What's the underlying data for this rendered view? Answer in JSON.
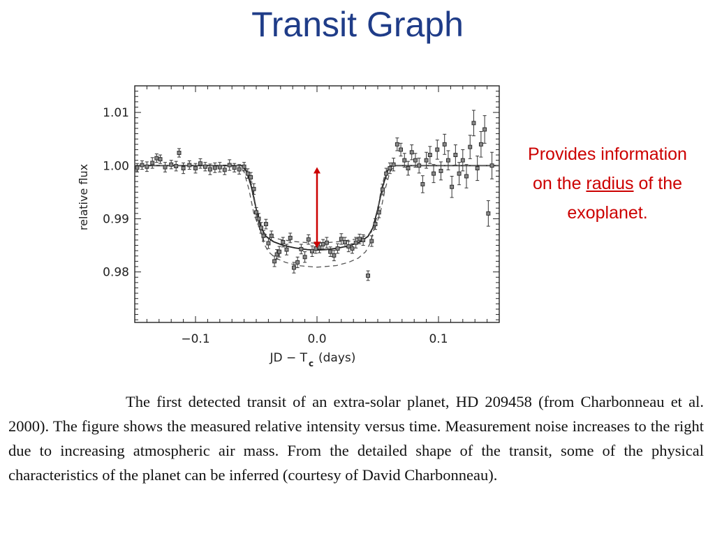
{
  "slide": {
    "title": "Transit Graph",
    "note": {
      "before": "Provides information on the ",
      "emphasis": "radius",
      "after": " of the exoplanet."
    },
    "caption": "The first detected transit of an extra-solar planet, HD 209458 (from Charbonneau et al. 2000). The figure shows the measured relative intensity versus time. Measurement noise increases to the right due to increasing atmospheric air mass. From the detailed shape of the transit, some of the physical characteristics of the planet can be inferred (courtesy of David Charbonneau).",
    "note_color": "#cc0000",
    "title_color": "#1f3c88"
  },
  "chart_data": {
    "type": "scatter",
    "xlabel": "JD − T",
    "xlabel_sub": "c",
    "xlabel_suffix": "(days)",
    "ylabel": "relative flux",
    "xlim": [
      -0.15,
      0.15
    ],
    "ylim": [
      0.9705,
      1.015
    ],
    "x_ticks": [
      -0.1,
      0.0,
      0.1
    ],
    "x_tick_labels": [
      "−0.1",
      "0.0",
      "0.1"
    ],
    "y_ticks": [
      0.98,
      0.99,
      1.0,
      1.01
    ],
    "y_tick_labels": [
      "0.98",
      "0.99",
      "1.00",
      "1.01"
    ],
    "grid": false,
    "series": [
      {
        "kind": "points_with_errorbars",
        "points": [
          {
            "x": -0.148,
            "y": 0.9996,
            "err": 0.0008
          },
          {
            "x": -0.144,
            "y": 1.0001,
            "err": 0.0008
          },
          {
            "x": -0.14,
            "y": 0.9998,
            "err": 0.0009
          },
          {
            "x": -0.1355,
            "y": 1.0005,
            "err": 0.001
          },
          {
            "x": -0.132,
            "y": 1.0014,
            "err": 0.0008
          },
          {
            "x": -0.129,
            "y": 1.0012,
            "err": 0.0008
          },
          {
            "x": -0.125,
            "y": 0.9997,
            "err": 0.0009
          },
          {
            "x": -0.12,
            "y": 1.0002,
            "err": 0.0008
          },
          {
            "x": -0.116,
            "y": 0.9999,
            "err": 0.0009
          },
          {
            "x": -0.1135,
            "y": 1.0024,
            "err": 0.0008
          },
          {
            "x": -0.11,
            "y": 0.9995,
            "err": 0.001
          },
          {
            "x": -0.105,
            "y": 1.0001,
            "err": 0.0008
          },
          {
            "x": -0.1,
            "y": 0.9995,
            "err": 0.0009
          },
          {
            "x": -0.096,
            "y": 1.0004,
            "err": 0.0009
          },
          {
            "x": -0.092,
            "y": 0.9998,
            "err": 0.0008
          },
          {
            "x": -0.088,
            "y": 0.9993,
            "err": 0.001
          },
          {
            "x": -0.084,
            "y": 0.9996,
            "err": 0.0009
          },
          {
            "x": -0.08,
            "y": 0.9997,
            "err": 0.0009
          },
          {
            "x": -0.076,
            "y": 0.9992,
            "err": 0.0009
          },
          {
            "x": -0.072,
            "y": 1.0001,
            "err": 0.001
          },
          {
            "x": -0.068,
            "y": 0.9996,
            "err": 0.0008
          },
          {
            "x": -0.064,
            "y": 0.9993,
            "err": 0.0009
          },
          {
            "x": -0.06,
            "y": 0.9998,
            "err": 0.0008
          },
          {
            "x": -0.057,
            "y": 0.9985,
            "err": 0.0009
          },
          {
            "x": -0.0545,
            "y": 0.9978,
            "err": 0.0009
          },
          {
            "x": -0.052,
            "y": 0.9956,
            "err": 0.001
          },
          {
            "x": -0.05,
            "y": 0.9912,
            "err": 0.0009
          },
          {
            "x": -0.048,
            "y": 0.99,
            "err": 0.001
          },
          {
            "x": -0.046,
            "y": 0.9883,
            "err": 0.001
          },
          {
            "x": -0.044,
            "y": 0.9868,
            "err": 0.001
          },
          {
            "x": -0.042,
            "y": 0.989,
            "err": 0.0009
          },
          {
            "x": -0.04,
            "y": 0.9854,
            "err": 0.001
          },
          {
            "x": -0.0375,
            "y": 0.9868,
            "err": 0.0009
          },
          {
            "x": -0.035,
            "y": 0.982,
            "err": 0.001
          },
          {
            "x": -0.033,
            "y": 0.9833,
            "err": 0.0009
          },
          {
            "x": -0.031,
            "y": 0.9838,
            "err": 0.001
          },
          {
            "x": -0.028,
            "y": 0.9856,
            "err": 0.0009
          },
          {
            "x": -0.025,
            "y": 0.9842,
            "err": 0.001
          },
          {
            "x": -0.022,
            "y": 0.9864,
            "err": 0.0009
          },
          {
            "x": -0.019,
            "y": 0.9808,
            "err": 0.001
          },
          {
            "x": -0.016,
            "y": 0.9818,
            "err": 0.001
          },
          {
            "x": -0.013,
            "y": 0.9843,
            "err": 0.0009
          },
          {
            "x": -0.01,
            "y": 0.9828,
            "err": 0.001
          },
          {
            "x": -0.007,
            "y": 0.9861,
            "err": 0.0009
          },
          {
            "x": -0.004,
            "y": 0.9839,
            "err": 0.001
          },
          {
            "x": -0.001,
            "y": 0.9844,
            "err": 0.0009
          },
          {
            "x": 0.002,
            "y": 0.9846,
            "err": 0.001
          },
          {
            "x": 0.005,
            "y": 0.9852,
            "err": 0.0009
          },
          {
            "x": 0.008,
            "y": 0.9855,
            "err": 0.001
          },
          {
            "x": 0.011,
            "y": 0.9838,
            "err": 0.0009
          },
          {
            "x": 0.014,
            "y": 0.9831,
            "err": 0.001
          },
          {
            "x": 0.017,
            "y": 0.9844,
            "err": 0.0009
          },
          {
            "x": 0.02,
            "y": 0.9862,
            "err": 0.001
          },
          {
            "x": 0.023,
            "y": 0.9856,
            "err": 0.0009
          },
          {
            "x": 0.026,
            "y": 0.9848,
            "err": 0.001
          },
          {
            "x": 0.029,
            "y": 0.9844,
            "err": 0.0009
          },
          {
            "x": 0.032,
            "y": 0.9855,
            "err": 0.001
          },
          {
            "x": 0.035,
            "y": 0.9862,
            "err": 0.0009
          },
          {
            "x": 0.038,
            "y": 0.986,
            "err": 0.001
          },
          {
            "x": 0.042,
            "y": 0.9793,
            "err": 0.0009
          },
          {
            "x": 0.045,
            "y": 0.9858,
            "err": 0.001
          },
          {
            "x": 0.048,
            "y": 0.989,
            "err": 0.001
          },
          {
            "x": 0.051,
            "y": 0.9912,
            "err": 0.001
          },
          {
            "x": 0.054,
            "y": 0.9955,
            "err": 0.001
          },
          {
            "x": 0.057,
            "y": 0.9985,
            "err": 0.001
          },
          {
            "x": 0.06,
            "y": 0.9995,
            "err": 0.001
          },
          {
            "x": 0.063,
            "y": 1.0002,
            "err": 0.0012
          },
          {
            "x": 0.066,
            "y": 1.004,
            "err": 0.0012
          },
          {
            "x": 0.069,
            "y": 1.003,
            "err": 0.0012
          },
          {
            "x": 0.072,
            "y": 1.001,
            "err": 0.0013
          },
          {
            "x": 0.075,
            "y": 0.9995,
            "err": 0.0013
          },
          {
            "x": 0.078,
            "y": 1.0025,
            "err": 0.0014
          },
          {
            "x": 0.081,
            "y": 1.001,
            "err": 0.0013
          },
          {
            "x": 0.084,
            "y": 1.0,
            "err": 0.0014
          },
          {
            "x": 0.087,
            "y": 0.9965,
            "err": 0.0016
          },
          {
            "x": 0.09,
            "y": 1.001,
            "err": 0.0015
          },
          {
            "x": 0.093,
            "y": 1.002,
            "err": 0.0016
          },
          {
            "x": 0.096,
            "y": 0.9985,
            "err": 0.0017
          },
          {
            "x": 0.099,
            "y": 1.003,
            "err": 0.0018
          },
          {
            "x": 0.102,
            "y": 0.999,
            "err": 0.0017
          },
          {
            "x": 0.105,
            "y": 1.004,
            "err": 0.0019
          },
          {
            "x": 0.108,
            "y": 1.001,
            "err": 0.0018
          },
          {
            "x": 0.111,
            "y": 0.996,
            "err": 0.002
          },
          {
            "x": 0.114,
            "y": 1.002,
            "err": 0.0019
          },
          {
            "x": 0.117,
            "y": 0.9985,
            "err": 0.0021
          },
          {
            "x": 0.12,
            "y": 1.001,
            "err": 0.002
          },
          {
            "x": 0.123,
            "y": 0.998,
            "err": 0.0022
          },
          {
            "x": 0.126,
            "y": 1.0035,
            "err": 0.0022
          },
          {
            "x": 0.129,
            "y": 1.008,
            "err": 0.0024
          },
          {
            "x": 0.132,
            "y": 0.9995,
            "err": 0.0023
          },
          {
            "x": 0.135,
            "y": 1.004,
            "err": 0.0024
          },
          {
            "x": 0.138,
            "y": 1.0068,
            "err": 0.0026
          },
          {
            "x": 0.141,
            "y": 0.991,
            "err": 0.0024
          },
          {
            "x": 0.144,
            "y": 1.0,
            "err": 0.0025
          }
        ]
      },
      {
        "kind": "model_curve",
        "style": "solid",
        "x": [
          -0.15,
          -0.062,
          -0.058,
          -0.054,
          -0.05,
          -0.046,
          -0.042,
          -0.036,
          -0.028,
          -0.018,
          -0.008,
          0.0,
          0.008,
          0.018,
          0.028,
          0.036,
          0.042,
          0.046,
          0.05,
          0.054,
          0.058,
          0.062,
          0.15
        ],
        "y": [
          1.0,
          1.0,
          0.999,
          0.996,
          0.9918,
          0.9883,
          0.9867,
          0.9857,
          0.985,
          0.9845,
          0.9842,
          0.9841,
          0.9842,
          0.9845,
          0.985,
          0.9857,
          0.9867,
          0.9883,
          0.9918,
          0.996,
          0.999,
          1.0,
          1.0
        ]
      },
      {
        "kind": "model_curve",
        "style": "dashed",
        "x": [
          -0.15,
          -0.064,
          -0.06,
          -0.056,
          -0.052,
          -0.048,
          -0.044,
          -0.038,
          -0.03,
          -0.018,
          -0.008,
          0.0,
          0.008,
          0.018,
          0.03,
          0.038,
          0.044,
          0.048,
          0.052,
          0.056,
          0.06,
          0.064,
          0.15
        ],
        "y": [
          1.0,
          1.0,
          0.9988,
          0.9955,
          0.991,
          0.9885,
          0.9873,
          0.9866,
          0.9861,
          0.9857,
          0.9855,
          0.9854,
          0.9855,
          0.9857,
          0.9861,
          0.9866,
          0.9873,
          0.9885,
          0.991,
          0.9955,
          0.9988,
          1.0,
          1.0
        ]
      },
      {
        "kind": "model_curve",
        "style": "dashed",
        "x": [
          -0.15,
          -0.06,
          -0.056,
          -0.052,
          -0.048,
          -0.044,
          -0.04,
          -0.034,
          -0.026,
          -0.016,
          -0.006,
          0.0,
          0.006,
          0.016,
          0.026,
          0.034,
          0.04,
          0.044,
          0.048,
          0.052,
          0.056,
          0.06,
          0.15
        ],
        "y": [
          1.0,
          1.0,
          0.9985,
          0.9945,
          0.989,
          0.9855,
          0.9838,
          0.9826,
          0.9818,
          0.9812,
          0.981,
          0.9809,
          0.981,
          0.9812,
          0.9818,
          0.9826,
          0.9838,
          0.9855,
          0.989,
          0.9945,
          0.9985,
          1.0,
          1.0
        ]
      }
    ],
    "annotation": {
      "kind": "double_arrow",
      "color": "#cc0000",
      "x": 0.0,
      "y_from": 0.9845,
      "y_to": 0.9997
    }
  }
}
